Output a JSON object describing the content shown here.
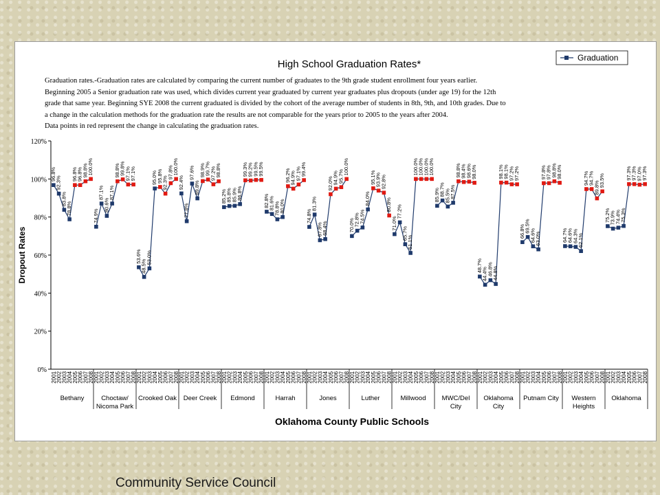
{
  "footer": {
    "text": "Community Service Council"
  },
  "colors": {
    "old_method": "#1f3a6b",
    "new_method": "#e11a12",
    "line": "#1f3a6b",
    "text": "#000000"
  },
  "description": [
    "Graduation rates.-Graduation rates are calculated by comparing the current number of graduates to the 9th grade student enrollment four years earlier.",
    "Beginning  2005 a Senior graduation rate was used, which divides current year graduated by current year graduates plus dropouts (under age 19)  for the 12th",
    "grade that same year. Beginning SYE 2008 the current graduated is divided by the cohort of the average number of students in 8th, 9th, and 10th grades.  Due to",
    "a change in the calculation methods for the graduation rate  the results are not comparable for the years prior to 2005 to the years after 2004.",
    "Data points in red represent the change in calculating the graduation rates."
  ],
  "chart_data": {
    "type": "line",
    "title": "High School Graduation Rates*",
    "ylabel": "Dropout Rates",
    "xlabel": "Oklahoma County Public Schools",
    "legend": {
      "label": "Graduation",
      "position": "top-right"
    },
    "ylim": [
      0,
      120
    ],
    "yticks": [
      "0%",
      "20%",
      "40%",
      "60%",
      "80%",
      "100%",
      "120%"
    ],
    "years": [
      "2001",
      "2002",
      "2003",
      "2004",
      "2005",
      "2006",
      "2007",
      "2008"
    ],
    "grid": false,
    "groups": [
      {
        "name": "Bethany",
        "values": [
          96.8,
          92.3,
          83.8,
          78.8,
          96.8,
          96.8,
          98.8,
          100.0
        ]
      },
      {
        "name": "Choctaw/ Nicoma Park",
        "values": [
          74.9,
          87.1,
          80.6,
          87.1,
          98.8,
          99.8,
          97.1,
          97.1
        ]
      },
      {
        "name": "Crooked Oak",
        "values": [
          53.6,
          48.5,
          53.0,
          95.0,
          95.8,
          92.3,
          97.8,
          100.0
        ]
      },
      {
        "name": "Deer Creek",
        "values": [
          92.4,
          77.8,
          97.6,
          89.8,
          98.9,
          99.7,
          97.2,
          98.8
        ]
      },
      {
        "name": "Edmond",
        "values": [
          85.2,
          85.8,
          85.9,
          86.8,
          99.3,
          99.2,
          99.5,
          99.5
        ]
      },
      {
        "name": "Harrah",
        "values": [
          82.8,
          81.6,
          78.8,
          80.0,
          96.2,
          94.9,
          97.1,
          99.4
        ]
      },
      {
        "name": "Jones",
        "values": [
          74.8,
          81.3,
          67.8,
          68.4,
          92.0,
          94.9,
          95.7,
          100.0
        ]
      },
      {
        "name": "Luther",
        "values": [
          70.0,
          72.8,
          74.5,
          84.0,
          95.1,
          93.9,
          92.8,
          80.8
        ]
      },
      {
        "name": "Millwood",
        "values": [
          71.0,
          77.2,
          65.7,
          61.1,
          100.0,
          100.0,
          100.0,
          100.0
        ]
      },
      {
        "name": "MWC/Del City",
        "values": [
          85.9,
          88.7,
          85.5,
          87.5,
          98.8,
          98.4,
          98.6,
          98.0
        ]
      },
      {
        "name": "Oklahoma City",
        "values": [
          48.7,
          44.4,
          46.8,
          44.8,
          98.1,
          98.1,
          97.2,
          97.2
        ]
      },
      {
        "name": "Putnam City",
        "values": [
          66.8,
          69.5,
          64.6,
          63.0,
          97.8,
          97.8,
          98.8,
          98.0
        ]
      },
      {
        "name": "Western Heights",
        "values": [
          64.7,
          64.6,
          64.3,
          62.1,
          94.7,
          94.7,
          89.8,
          93.5
        ]
      },
      {
        "name": "Oklahoma",
        "values": [
          75.2,
          73.9,
          74.4,
          75.3,
          97.3,
          97.3,
          97.0,
          97.3
        ]
      }
    ]
  }
}
